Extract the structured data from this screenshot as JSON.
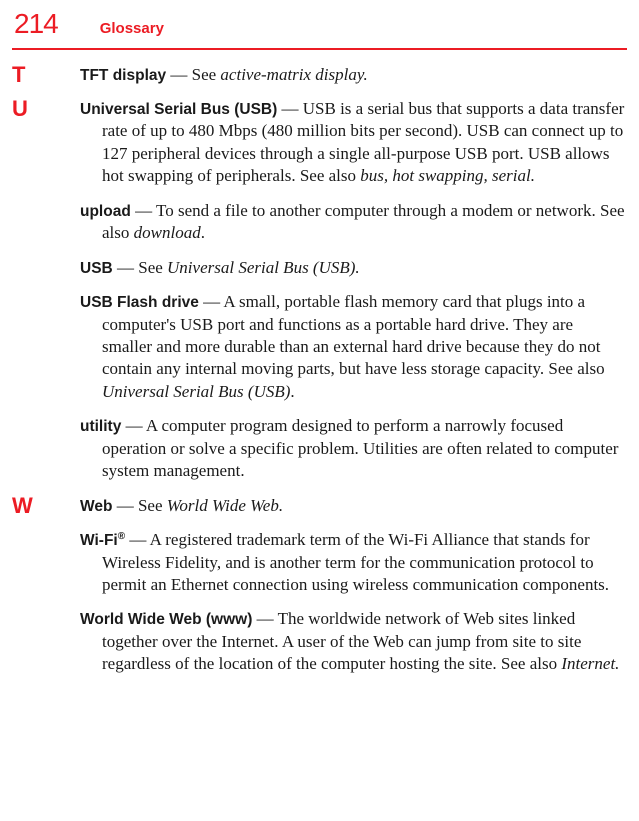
{
  "colors": {
    "accent": "#ec1c24",
    "text": "#1a1a1a",
    "background": "#ffffff"
  },
  "typography": {
    "body_font": "Georgia, 'Times New Roman', serif",
    "heading_font": "Arial, Helvetica, sans-serif",
    "page_number_size": 28,
    "header_title_size": 15,
    "section_letter_size": 22,
    "body_size": 17,
    "term_size": 15.5
  },
  "header": {
    "page_number": "214",
    "title": "Glossary"
  },
  "sections": [
    {
      "letter": "T",
      "entries": [
        {
          "term": "TFT display",
          "sep": " — ",
          "body_pre": "See ",
          "italic": "active-matrix display.",
          "body_post": ""
        }
      ]
    },
    {
      "letter": "U",
      "entries": [
        {
          "term": "Universal Serial Bus (USB)",
          "sep": " — ",
          "body_pre": "USB is a serial bus that supports a data transfer rate of up to 480 Mbps (480 million bits per second). USB can connect up to 127 peripheral devices through a single all-purpose USB port. USB allows hot swapping of peripherals. See also ",
          "italic": "bus, hot swapping, serial.",
          "body_post": ""
        },
        {
          "term": "upload",
          "sep": " — ",
          "body_pre": "To send a file to another computer through a modem or network. See also ",
          "italic": "download",
          "body_post": "."
        },
        {
          "term": "USB",
          "sep": " — ",
          "body_pre": "See ",
          "italic": "Universal Serial Bus (USB).",
          "body_post": ""
        },
        {
          "term": "USB Flash drive",
          "sep": " — ",
          "body_pre": "A small, portable flash memory card that plugs into a computer's USB port and functions as a portable hard drive. They are smaller and more durable than an external hard drive because they do not contain any internal moving parts, but have less storage capacity. See also ",
          "italic": "Universal Serial Bus (USB)",
          "body_post": "."
        },
        {
          "term": "utility",
          "sep": " — ",
          "body_pre": "A computer program designed to perform a narrowly focused operation or solve a specific problem. Utilities are often related to computer system management.",
          "italic": "",
          "body_post": ""
        }
      ]
    },
    {
      "letter": "W",
      "entries": [
        {
          "term": "Web",
          "sep": " — ",
          "body_pre": "See ",
          "italic": "World Wide Web.",
          "body_post": ""
        },
        {
          "term": "Wi-Fi",
          "term_sup": "®",
          "sep": " — ",
          "body_pre": "A registered trademark term of the Wi-Fi Alliance that stands for Wireless Fidelity, and is another term for the communication protocol to permit an Ethernet connection using wireless communication components.",
          "italic": "",
          "body_post": ""
        },
        {
          "term": "World Wide Web (www)",
          "sep": " — ",
          "body_pre": "The worldwide network of Web sites linked together over the Internet. A user of the Web can jump from site to site regardless of the location of the computer hosting the site. See also ",
          "italic": "Internet.",
          "body_post": ""
        }
      ]
    }
  ]
}
